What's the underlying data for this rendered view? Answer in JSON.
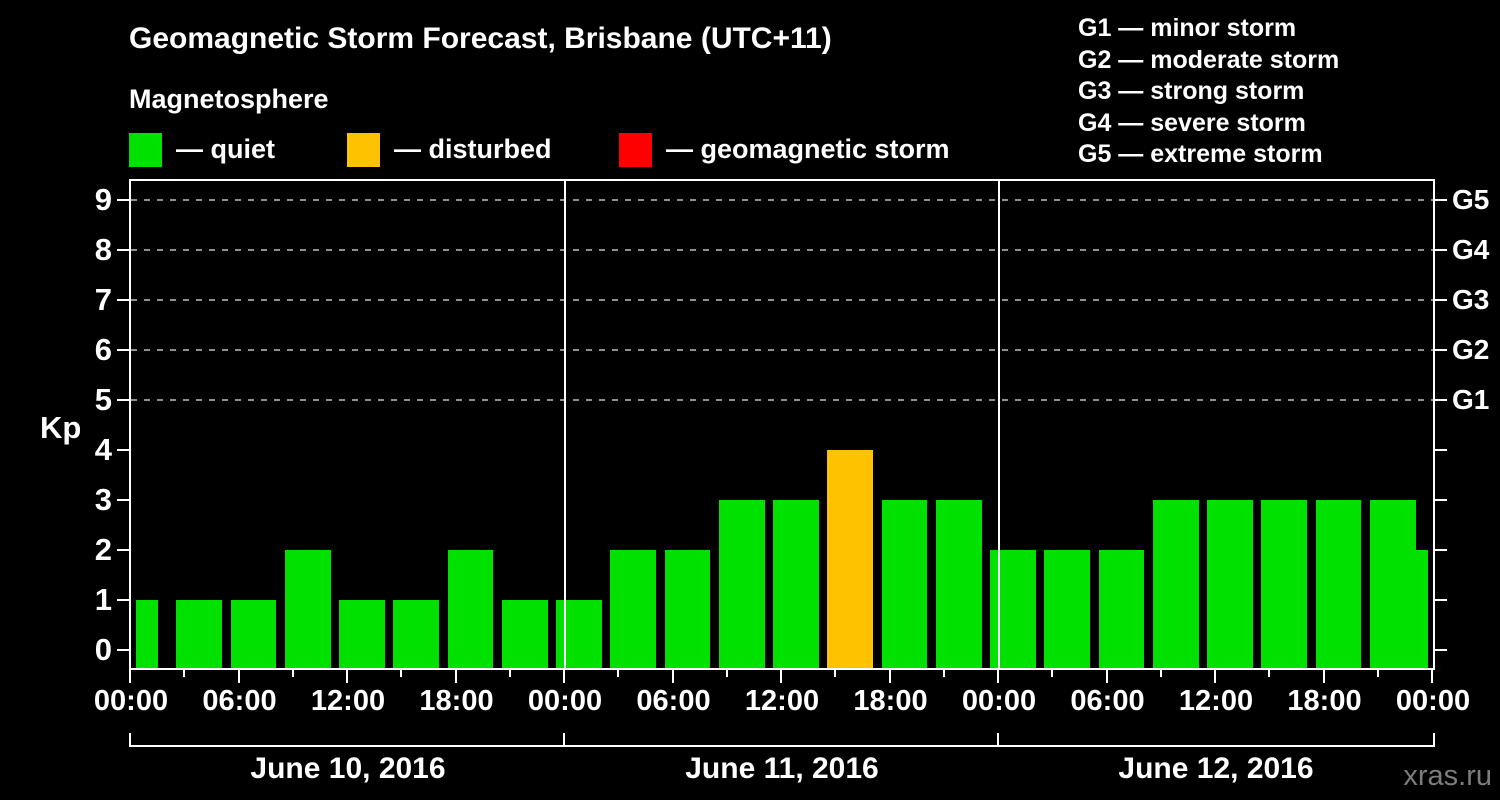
{
  "title": "Geomagnetic Storm Forecast, Brisbane (UTC+11)",
  "subtitle": "Magnetosphere",
  "activity_legend": [
    {
      "name": "quiet",
      "label": "— quiet",
      "color": "#00e100"
    },
    {
      "name": "disturbed",
      "label": "— disturbed",
      "color": "#ffc200"
    },
    {
      "name": "geomagnetic-storm",
      "label": "— geomagnetic storm",
      "color": "#ff0000"
    }
  ],
  "storm_scale_legend": [
    "G1 — minor storm",
    "G2 — moderate storm",
    "G3 — strong storm",
    "G4 — severe storm",
    "G5 — extreme storm"
  ],
  "chart_data": {
    "type": "bar",
    "ylabel": "Kp",
    "ylim": [
      0,
      9
    ],
    "yticks": [
      0,
      1,
      2,
      3,
      4,
      5,
      6,
      7,
      8,
      9
    ],
    "grid_levels": [
      5,
      6,
      7,
      8,
      9
    ],
    "right_axis": [
      {
        "kp": 5,
        "label": "G1"
      },
      {
        "kp": 6,
        "label": "G2"
      },
      {
        "kp": 7,
        "label": "G3"
      },
      {
        "kp": 8,
        "label": "G4"
      },
      {
        "kp": 9,
        "label": "G5"
      }
    ],
    "interval_hours": 3,
    "x_tick_labels": [
      "00:00",
      "06:00",
      "12:00",
      "18:00",
      "00:00",
      "06:00",
      "12:00",
      "18:00",
      "00:00",
      "06:00",
      "12:00",
      "18:00",
      "00:00"
    ],
    "days": [
      {
        "date": "June 10, 2016",
        "kp": [
          1,
          1,
          1,
          2,
          1,
          1,
          2,
          1
        ]
      },
      {
        "date": "June 11, 2016",
        "kp": [
          1,
          2,
          2,
          3,
          3,
          4,
          3,
          3
        ]
      },
      {
        "date": "June 12, 2016",
        "kp": [
          2,
          2,
          2,
          3,
          3,
          3,
          3,
          3
        ]
      }
    ],
    "partial_next_day_bar_kp": 2,
    "color_thresholds": {
      "quiet_max_kp": 3,
      "disturbed_max_kp": 4
    }
  },
  "footer": {
    "watermark": "xras.ru"
  }
}
